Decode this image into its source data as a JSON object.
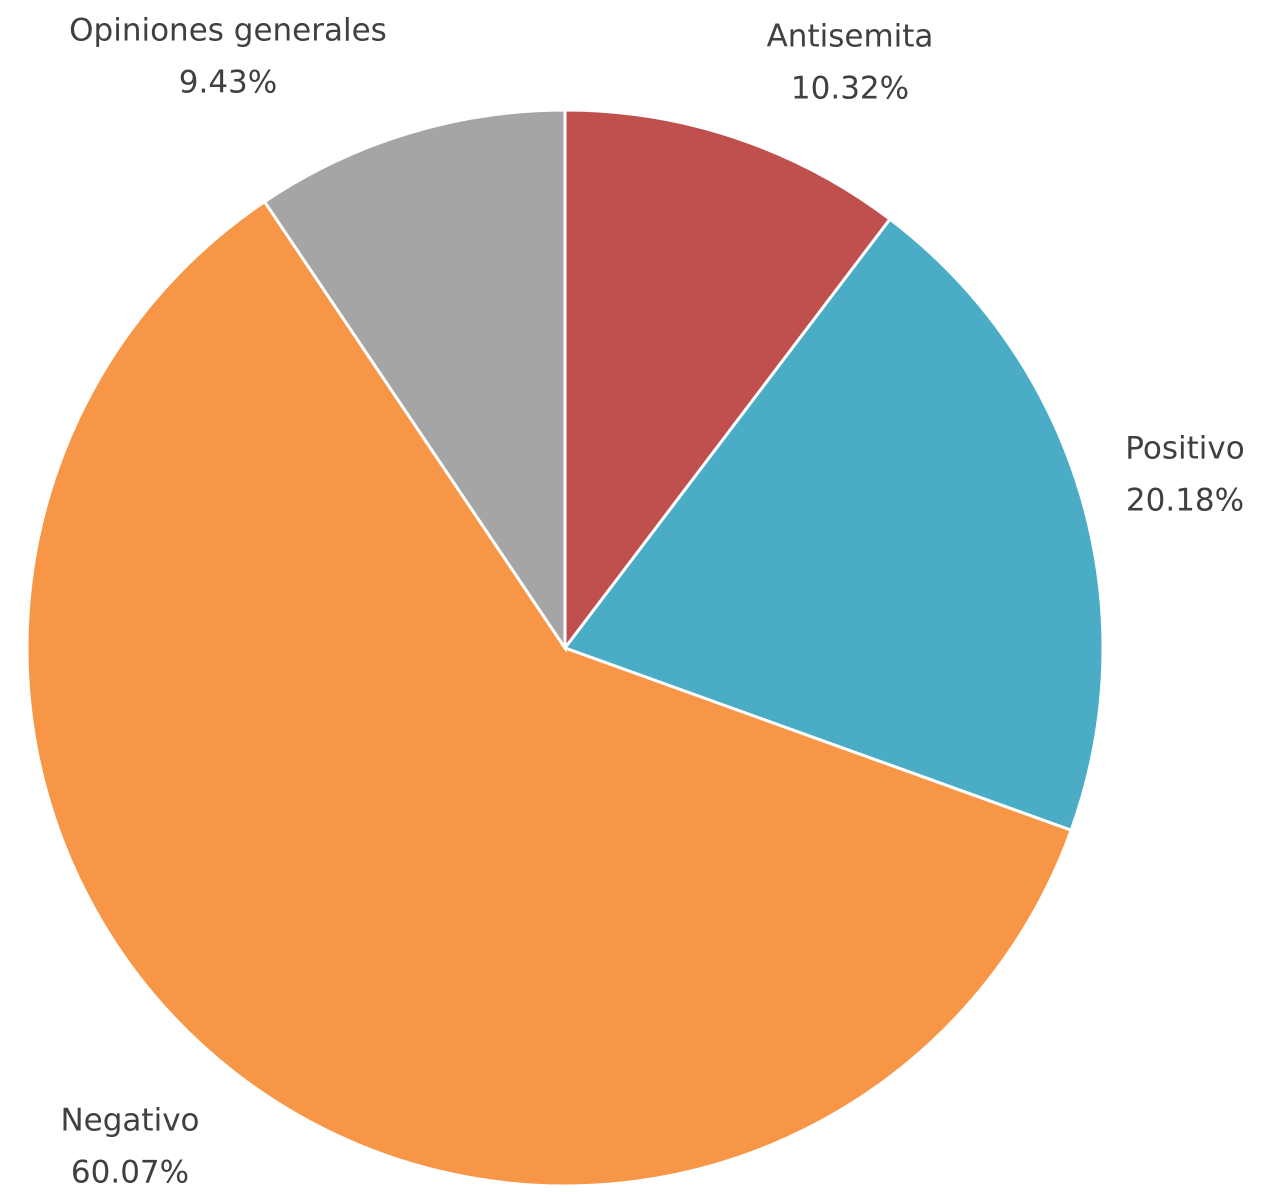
{
  "chart_data": {
    "type": "pie",
    "categories": [
      "Antisemita",
      "Positivo",
      "Negativo",
      "Opiniones generales"
    ],
    "values": [
      10.32,
      20.18,
      60.07,
      9.43
    ],
    "value_labels": [
      "10.32%",
      "20.18%",
      "60.07%",
      "9.43%"
    ],
    "colors": [
      "#c0504d",
      "#4bacc6",
      "#f79646",
      "#a5a5a5"
    ]
  }
}
